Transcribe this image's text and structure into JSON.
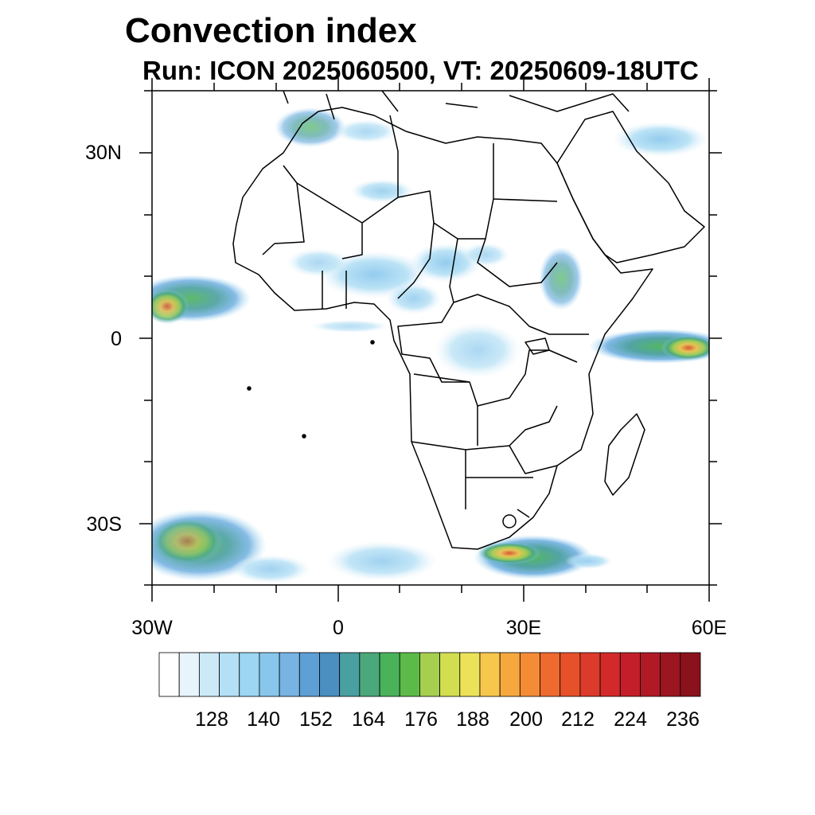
{
  "title": "Convection index",
  "subtitle": "Run: ICON 2025060500,  VT: 20250609-18UTC",
  "map": {
    "lat_labels": [
      "30N",
      "0",
      "30S"
    ],
    "lon_labels": [
      "30W",
      "0",
      "30E",
      "60E"
    ],
    "lon_range": [
      -30,
      60
    ],
    "lat_range": [
      -40,
      40
    ]
  },
  "colorbar": {
    "labels": [
      "128",
      "140",
      "152",
      "164",
      "176",
      "188",
      "200",
      "212",
      "224",
      "236"
    ],
    "colors": [
      "#ffffff",
      "#e8f4fb",
      "#cce9f7",
      "#b4e0f5",
      "#9cd6f3",
      "#88c6ec",
      "#78b4e3",
      "#5e9fd6",
      "#4a8fc0",
      "#4a9fa0",
      "#4aa87a",
      "#4ab35a",
      "#5cbb48",
      "#a6cf50",
      "#d2de50",
      "#ece25a",
      "#f7c64c",
      "#f6a83e",
      "#f48c36",
      "#ee6a2e",
      "#e6512a",
      "#dc3a2a",
      "#d22a2a",
      "#c41e2a",
      "#b01a24",
      "#9c1620",
      "#8a121c"
    ]
  }
}
